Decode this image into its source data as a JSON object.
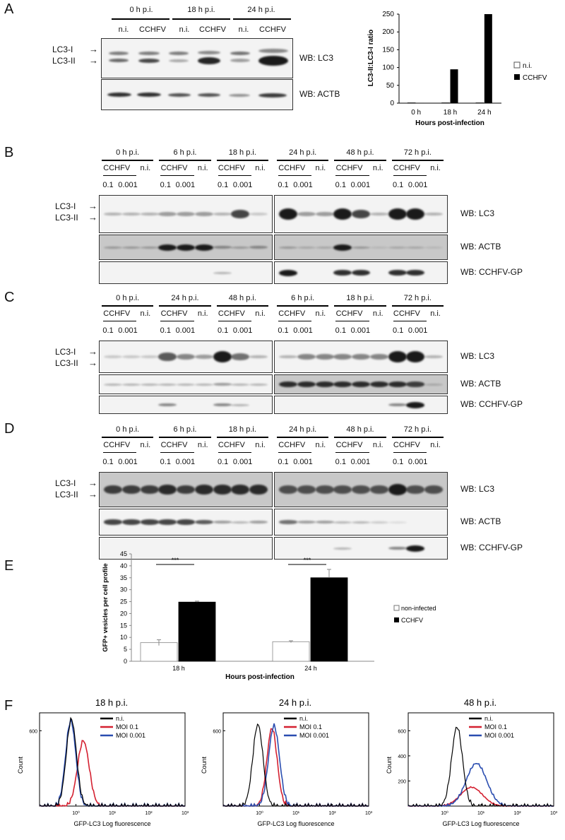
{
  "panels": {
    "A": {
      "label": "A",
      "timepoints": [
        "0 h p.i.",
        "18 h p.i.",
        "24 h p.i."
      ],
      "conditions": [
        "n.i.",
        "CCHFV",
        "n.i.",
        "CCHFV",
        "n.i.",
        "CCHFV"
      ],
      "lc3_i": "LC3-I",
      "lc3_ii": "LC3-II",
      "wb_lc3": "WB: LC3",
      "wb_actb": "WB: ACTB",
      "chart": {
        "ylabel": "LC3-II:LC3-I ratio",
        "xlabel": "Hours post-infection",
        "yticks": [
          "0",
          "50",
          "100",
          "150",
          "200",
          "250"
        ],
        "legend": [
          "n.i.",
          "CCHFV"
        ]
      }
    },
    "B": {
      "label": "B",
      "left_timepoints": [
        "0 h p.i.",
        "6 h p.i.",
        "18 h p.i."
      ],
      "right_timepoints": [
        "24 h p.i.",
        "48 h p.i.",
        "72 h p.i."
      ]
    },
    "C": {
      "label": "C",
      "left_timepoints": [
        "0 h p.i.",
        "24 h p.i.",
        "48 h p.i."
      ],
      "right_timepoints": [
        "6 h p.i.",
        "18 h p.i.",
        "72 h p.i."
      ]
    },
    "D": {
      "label": "D",
      "left_timepoints": [
        "0 h p.i.",
        "6 h p.i.",
        "18 h p.i."
      ],
      "right_timepoints": [
        "24 h p.i.",
        "48 h p.i.",
        "72 h p.i."
      ]
    },
    "blot_common": {
      "virus": "CCHFV",
      "ni": "n.i.",
      "moi_high": "0.1",
      "moi_low": "0.001",
      "lc3_i": "LC3-I",
      "lc3_ii": "LC3-II",
      "wb_lc3": "WB: LC3",
      "wb_actb": "WB: ACTB",
      "wb_gp": "WB: CCHFV-GP"
    },
    "E": {
      "label": "E",
      "ylabel": "GFP+ vesicles per cell profile",
      "xlabel": "Hours post-infection",
      "yticks": [
        "0",
        "5",
        "10",
        "15",
        "20",
        "25",
        "30",
        "35",
        "40",
        "45"
      ],
      "significance": "***",
      "legend": [
        "non-infected",
        "CCHFV"
      ]
    },
    "F": {
      "label": "F",
      "xlabel": "GFP-LC3 Log fluorescence",
      "ylabel": "Count",
      "xticks": [
        "10⁰",
        "10¹",
        "10²",
        "10³"
      ],
      "legend": [
        "n.i.",
        "MOI 0.1",
        "MOI 0.001"
      ],
      "plots": [
        {
          "title": "18 h p.i.",
          "yticks": [
            "600"
          ]
        },
        {
          "title": "24 h p.i.",
          "yticks": [
            "600"
          ]
        },
        {
          "title": "48 h p.i.",
          "yticks": [
            "200",
            "400",
            "600"
          ]
        }
      ]
    }
  },
  "chart_data": [
    {
      "type": "bar",
      "categories": [
        "0 h",
        "18 h",
        "24 h"
      ],
      "series": [
        {
          "name": "n.i.",
          "values": [
            1,
            1,
            1
          ]
        },
        {
          "name": "CCHFV",
          "values": [
            1,
            95,
            250
          ]
        }
      ],
      "xlabel": "Hours post-infection",
      "ylabel": "LC3-II:LC3-I ratio",
      "ylim": [
        0,
        250
      ],
      "legend": "right"
    },
    {
      "type": "bar",
      "categories": [
        "18 h",
        "24 h"
      ],
      "series": [
        {
          "name": "non-infected",
          "values": [
            7.8,
            8.2
          ],
          "errors": [
            1.2,
            0.4
          ]
        },
        {
          "name": "CCHFV",
          "values": [
            24.8,
            35
          ],
          "errors": [
            0.4,
            3.5
          ]
        }
      ],
      "xlabel": "Hours post-infection",
      "ylabel": "GFP+ vesicles per cell profile",
      "ylim": [
        0,
        45
      ],
      "annotations": [
        "***",
        "***"
      ],
      "legend": "right"
    },
    {
      "type": "line",
      "title": "18 h p.i.",
      "xlabel": "GFP-LC3 Log fluorescence",
      "ylabel": "Count",
      "xscale": "log",
      "series": [
        {
          "name": "n.i.",
          "color": "#000000",
          "peak_x": 0.75,
          "peak_y": 690
        },
        {
          "name": "MOI 0.1",
          "color": "#d42030",
          "peak_x": 1.6,
          "peak_y": 520
        },
        {
          "name": "MOI 0.001",
          "color": "#2a4db0",
          "peak_x": 0.72,
          "peak_y": 680
        }
      ]
    },
    {
      "type": "line",
      "title": "24 h p.i.",
      "xlabel": "GFP-LC3 Log fluorescence",
      "ylabel": "Count",
      "xscale": "log",
      "series": [
        {
          "name": "n.i.",
          "color": "#000000",
          "peak_x": 0.9,
          "peak_y": 650
        },
        {
          "name": "MOI 0.1",
          "color": "#d42030",
          "peak_x": 2.2,
          "peak_y": 620
        },
        {
          "name": "MOI 0.001",
          "color": "#2a4db0",
          "peak_x": 2.5,
          "peak_y": 640
        }
      ]
    },
    {
      "type": "line",
      "title": "48 h p.i.",
      "xlabel": "GFP-LC3 Log fluorescence",
      "ylabel": "Count",
      "xscale": "log",
      "series": [
        {
          "name": "n.i.",
          "color": "#000000",
          "peak_x": 2.2,
          "peak_y": 630
        },
        {
          "name": "MOI 0.1",
          "color": "#d42030",
          "peak_x": 5.5,
          "peak_y": 150
        },
        {
          "name": "MOI 0.001",
          "color": "#2a4db0",
          "peak_x": 7.5,
          "peak_y": 340
        }
      ]
    }
  ]
}
